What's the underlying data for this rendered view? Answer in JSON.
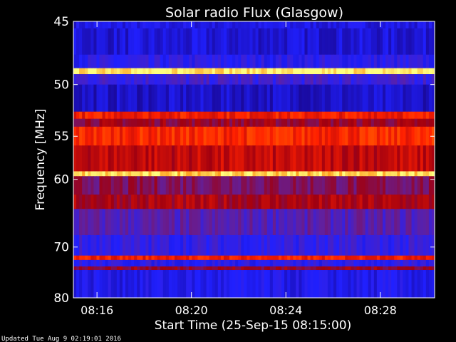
{
  "chart_data": {
    "type": "heatmap",
    "title": "Solar radio Flux (Glasgow)",
    "xlabel": "Start Time (25-Sep-15 08:15:00)",
    "ylabel": "Frequency [MHz]",
    "x_tick_labels": [
      "08:16",
      "08:20",
      "08:24",
      "08:28"
    ],
    "x_ticks_minutes_after_0815": [
      1,
      5,
      9,
      13
    ],
    "x_range_minutes_after_0815": [
      0,
      15.3
    ],
    "y_tick_labels": [
      "45",
      "50",
      "55",
      "60",
      "70",
      "80"
    ],
    "y_ticks": [
      45,
      50,
      55,
      60,
      70,
      80
    ],
    "y_range_mhz": [
      45,
      80
    ],
    "y_scale": "reciprocal",
    "colormap": [
      "#000000",
      "#1a0aa0",
      "#2020ff",
      "#6020a0",
      "#a00010",
      "#ff2000",
      "#ff8000",
      "#ffff80"
    ],
    "bands_mhz": [
      {
        "from": 45.0,
        "to": 45.5,
        "level": 0.25
      },
      {
        "from": 45.5,
        "to": 47.5,
        "level": 0.22
      },
      {
        "from": 47.5,
        "to": 48.6,
        "level": 0.3
      },
      {
        "from": 48.6,
        "to": 49.1,
        "level": 0.98
      },
      {
        "from": 49.1,
        "to": 50.0,
        "level": 0.35
      },
      {
        "from": 50.0,
        "to": 52.5,
        "level": 0.2
      },
      {
        "from": 52.5,
        "to": 53.2,
        "level": 0.7
      },
      {
        "from": 53.2,
        "to": 54.0,
        "level": 0.55
      },
      {
        "from": 54.0,
        "to": 56.0,
        "level": 0.72
      },
      {
        "from": 56.0,
        "to": 59.0,
        "level": 0.62
      },
      {
        "from": 59.0,
        "to": 59.6,
        "level": 0.95
      },
      {
        "from": 59.6,
        "to": 62.0,
        "level": 0.5
      },
      {
        "from": 62.0,
        "to": 64.0,
        "level": 0.58
      },
      {
        "from": 64.0,
        "to": 68.0,
        "level": 0.4
      },
      {
        "from": 68.0,
        "to": 71.5,
        "level": 0.32
      },
      {
        "from": 71.5,
        "to": 72.3,
        "level": 0.7
      },
      {
        "from": 72.3,
        "to": 73.5,
        "level": 0.3
      },
      {
        "from": 73.5,
        "to": 74.2,
        "level": 0.55
      },
      {
        "from": 74.2,
        "to": 80.0,
        "level": 0.26
      }
    ]
  },
  "footer": {
    "updated": "Updated Tue Aug  9 02:19:01 2016"
  }
}
